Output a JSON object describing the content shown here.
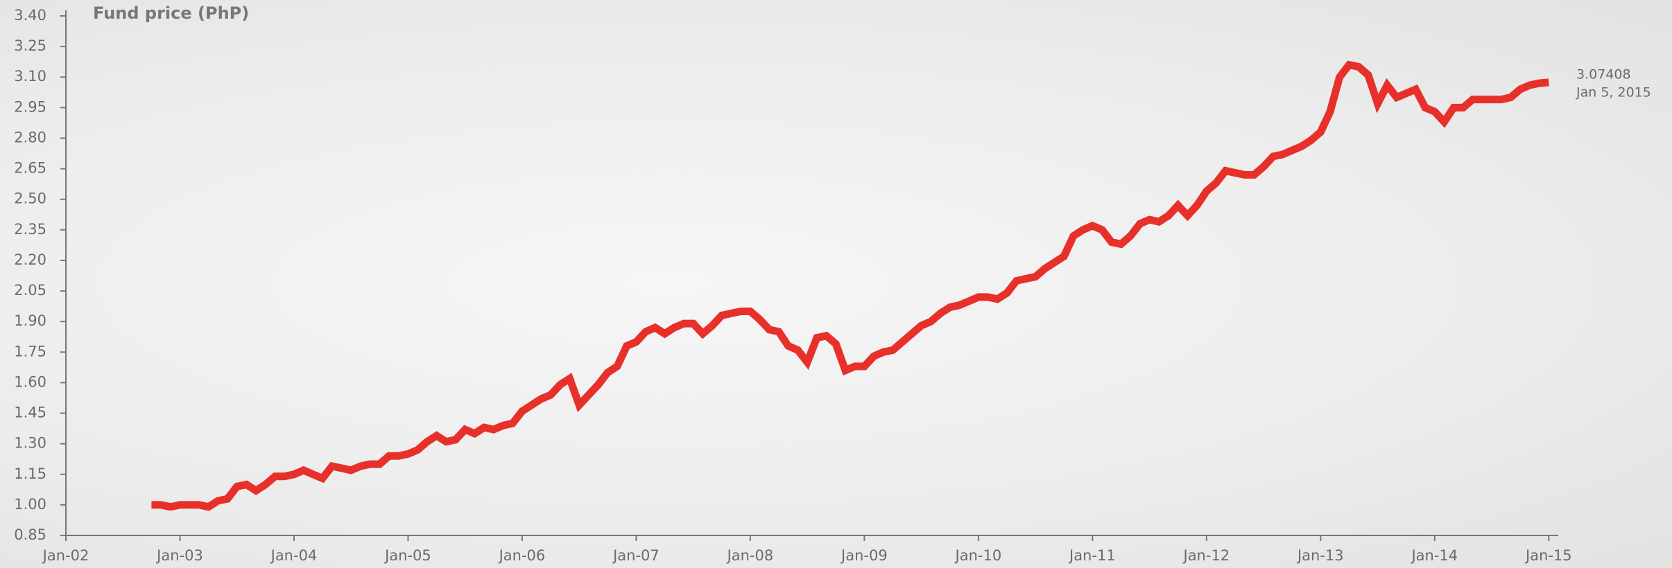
{
  "chart_data": {
    "type": "line",
    "title": "Fund price (PhP)",
    "x": [
      "2002-10",
      "2002-11",
      "2002-12",
      "2003-01",
      "2003-02",
      "2003-03",
      "2003-04",
      "2003-05",
      "2003-06",
      "2003-07",
      "2003-08",
      "2003-09",
      "2003-10",
      "2003-11",
      "2003-12",
      "2004-01",
      "2004-02",
      "2004-03",
      "2004-04",
      "2004-05",
      "2004-06",
      "2004-07",
      "2004-08",
      "2004-09",
      "2004-10",
      "2004-11",
      "2004-12",
      "2005-01",
      "2005-02",
      "2005-03",
      "2005-04",
      "2005-05",
      "2005-06",
      "2005-07",
      "2005-08",
      "2005-09",
      "2005-10",
      "2005-11",
      "2005-12",
      "2006-01",
      "2006-02",
      "2006-03",
      "2006-04",
      "2006-05",
      "2006-06",
      "2006-07",
      "2006-08",
      "2006-09",
      "2006-10",
      "2006-11",
      "2006-12",
      "2007-01",
      "2007-02",
      "2007-03",
      "2007-04",
      "2007-05",
      "2007-06",
      "2007-07",
      "2007-08",
      "2007-09",
      "2007-10",
      "2007-11",
      "2007-12",
      "2008-01",
      "2008-02",
      "2008-03",
      "2008-04",
      "2008-05",
      "2008-06",
      "2008-07",
      "2008-08",
      "2008-09",
      "2008-10",
      "2008-11",
      "2008-12",
      "2009-01",
      "2009-02",
      "2009-03",
      "2009-04",
      "2009-05",
      "2009-06",
      "2009-07",
      "2009-08",
      "2009-09",
      "2009-10",
      "2009-11",
      "2009-12",
      "2010-01",
      "2010-02",
      "2010-03",
      "2010-04",
      "2010-05",
      "2010-06",
      "2010-07",
      "2010-08",
      "2010-09",
      "2010-10",
      "2010-11",
      "2010-12",
      "2011-01",
      "2011-02",
      "2011-03",
      "2011-04",
      "2011-05",
      "2011-06",
      "2011-07",
      "2011-08",
      "2011-09",
      "2011-10",
      "2011-11",
      "2011-12",
      "2012-01",
      "2012-02",
      "2012-03",
      "2012-04",
      "2012-05",
      "2012-06",
      "2012-07",
      "2012-08",
      "2012-09",
      "2012-10",
      "2012-11",
      "2012-12",
      "2013-01",
      "2013-02",
      "2013-03",
      "2013-04",
      "2013-05",
      "2013-06",
      "2013-07",
      "2013-08",
      "2013-09",
      "2013-10",
      "2013-11",
      "2013-12",
      "2014-01",
      "2014-02",
      "2014-03",
      "2014-04",
      "2014-05",
      "2014-06",
      "2014-07",
      "2014-08",
      "2014-09",
      "2014-10",
      "2014-11",
      "2014-12",
      "2015-01"
    ],
    "values": [
      1.0,
      1.0,
      0.99,
      1.0,
      1.0,
      1.0,
      0.99,
      1.02,
      1.03,
      1.09,
      1.1,
      1.07,
      1.1,
      1.14,
      1.14,
      1.15,
      1.17,
      1.15,
      1.13,
      1.19,
      1.18,
      1.17,
      1.19,
      1.2,
      1.2,
      1.24,
      1.24,
      1.25,
      1.27,
      1.31,
      1.34,
      1.31,
      1.32,
      1.37,
      1.35,
      1.38,
      1.37,
      1.39,
      1.4,
      1.46,
      1.49,
      1.52,
      1.54,
      1.59,
      1.62,
      1.49,
      1.54,
      1.59,
      1.65,
      1.68,
      1.78,
      1.8,
      1.85,
      1.87,
      1.84,
      1.87,
      1.89,
      1.89,
      1.84,
      1.88,
      1.93,
      1.94,
      1.95,
      1.95,
      1.91,
      1.86,
      1.85,
      1.78,
      1.76,
      1.7,
      1.82,
      1.83,
      1.79,
      1.66,
      1.68,
      1.68,
      1.73,
      1.75,
      1.76,
      1.8,
      1.84,
      1.88,
      1.9,
      1.94,
      1.97,
      1.98,
      2.0,
      2.02,
      2.02,
      2.01,
      2.04,
      2.1,
      2.11,
      2.12,
      2.16,
      2.19,
      2.22,
      2.32,
      2.35,
      2.37,
      2.35,
      2.29,
      2.28,
      2.32,
      2.38,
      2.4,
      2.39,
      2.42,
      2.47,
      2.42,
      2.47,
      2.54,
      2.58,
      2.64,
      2.63,
      2.62,
      2.62,
      2.66,
      2.71,
      2.72,
      2.74,
      2.76,
      2.79,
      2.83,
      2.93,
      3.1,
      3.16,
      3.15,
      3.11,
      2.97,
      3.06,
      3.0,
      3.02,
      3.04,
      2.95,
      2.93,
      2.88,
      2.95,
      2.95,
      2.99,
      2.99,
      2.99,
      2.99,
      3.0,
      3.04,
      3.06,
      3.07,
      3.07408
    ],
    "color": "#e8302a",
    "annotation": "Jan 5, 2015",
    "xlim": [
      "2002-01",
      "2015-02"
    ],
    "xticks": [
      {
        "value": "2002-01",
        "label": "Jan-02"
      },
      {
        "value": "2003-01",
        "label": "Jan-03"
      },
      {
        "value": "2004-01",
        "label": "Jan-04"
      },
      {
        "value": "2005-01",
        "label": "Jan-05"
      },
      {
        "value": "2006-01",
        "label": "Jan-06"
      },
      {
        "value": "2007-01",
        "label": "Jan-07"
      },
      {
        "value": "2008-01",
        "label": "Jan-08"
      },
      {
        "value": "2009-01",
        "label": "Jan-09"
      },
      {
        "value": "2010-01",
        "label": "Jan-10"
      },
      {
        "value": "2011-01",
        "label": "Jan-11"
      },
      {
        "value": "2012-01",
        "label": "Jan-12"
      },
      {
        "value": "2013-01",
        "label": "Jan-13"
      },
      {
        "value": "2014-01",
        "label": "Jan-14"
      },
      {
        "value": "2015-01",
        "label": "Jan-15"
      }
    ],
    "ylim": [
      0.85,
      3.4
    ],
    "yticks": [
      0.85,
      {
        "value": 1,
        "label": "1.00"
      },
      1.15,
      {
        "value": 1.3,
        "label": "1.30"
      },
      1.45,
      {
        "value": 1.6,
        "label": "1.60"
      },
      1.75,
      {
        "value": 1.9,
        "label": "1.90"
      },
      2.05,
      {
        "value": 2.2,
        "label": "2.20"
      },
      2.35,
      {
        "value": 2.5,
        "label": "2.50"
      },
      2.65,
      {
        "value": 2.8,
        "label": "2.80"
      },
      2.95,
      {
        "value": 3.1,
        "label": "3.10"
      },
      3.25,
      {
        "value": 3.4,
        "label": "3.40"
      }
    ]
  }
}
